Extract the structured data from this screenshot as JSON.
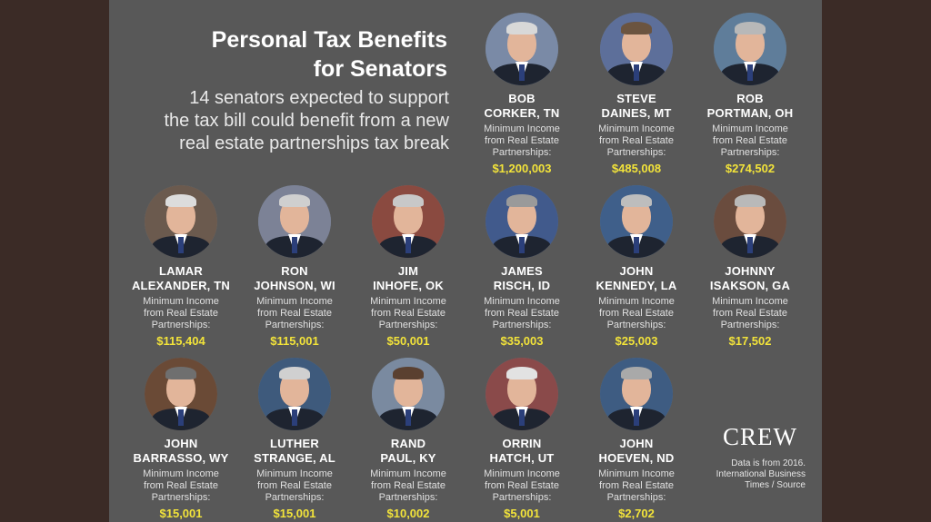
{
  "title_line1": "Personal Tax Benefits",
  "title_line2": "for Senators",
  "subtitle_line1": "14 senators expected to support",
  "subtitle_line2": "the tax bill could benefit from a new",
  "subtitle_line3": "real estate partnerships tax break",
  "label_line1": "Minimum Income",
  "label_line2": "from Real Estate",
  "label_line3": "Partnerships:",
  "senators": [
    {
      "line1": "BOB",
      "line2": "CORKER, TN",
      "amount": "$1,200,003",
      "hair": "#d8d8d8",
      "bg": "#7a8aa6"
    },
    {
      "line1": "STEVE",
      "line2": "DAINES, MT",
      "amount": "$485,008",
      "hair": "#6b5440",
      "bg": "#5d6f9a"
    },
    {
      "line1": "ROB",
      "line2": "PORTMAN, OH",
      "amount": "$274,502",
      "hair": "#b8b8b8",
      "bg": "#5f7d9a"
    },
    {
      "line1": "LAMAR",
      "line2": "ALEXANDER, TN",
      "amount": "$115,404",
      "hair": "#dcdcdc",
      "bg": "#6b5a4e"
    },
    {
      "line1": "RON",
      "line2": "JOHNSON, WI",
      "amount": "$115,001",
      "hair": "#cfcfcf",
      "bg": "#7c8296"
    },
    {
      "line1": "JIM",
      "line2": "INHOFE, OK",
      "amount": "$50,001",
      "hair": "#c8c8c8",
      "bg": "#8a4a40"
    },
    {
      "line1": "JAMES",
      "line2": "RISCH, ID",
      "amount": "$35,003",
      "hair": "#9a9a9a",
      "bg": "#415a8c"
    },
    {
      "line1": "JOHN",
      "line2": "KENNEDY, LA",
      "amount": "$25,003",
      "hair": "#bdbdbd",
      "bg": "#3f5f8a"
    },
    {
      "line1": "JOHNNY",
      "line2": "ISAKSON, GA",
      "amount": "$17,502",
      "hair": "#b9b9b9",
      "bg": "#6a4c3e"
    },
    {
      "line1": "JOHN",
      "line2": "BARRASSO, WY",
      "amount": "$15,001",
      "hair": "#6f6f6f",
      "bg": "#6a4a36"
    },
    {
      "line1": "LUTHER",
      "line2": "STRANGE, AL",
      "amount": "$15,001",
      "hair": "#d0d0d0",
      "bg": "#3e5a7c"
    },
    {
      "line1": "RAND",
      "line2": "PAUL, KY",
      "amount": "$10,002",
      "hair": "#5a4030",
      "bg": "#7a8aa0"
    },
    {
      "line1": "ORRIN",
      "line2": "HATCH, UT",
      "amount": "$5,001",
      "hair": "#e2e2e2",
      "bg": "#8a4a4a"
    },
    {
      "line1": "JOHN",
      "line2": "HOEVEN, ND",
      "amount": "$2,702",
      "hair": "#a9a9a9",
      "bg": "#3e5c82"
    }
  ],
  "logo": "CREW",
  "source_line1": "Data is from 2016.",
  "source_line2": "International Business",
  "source_line3": "Times / Source"
}
